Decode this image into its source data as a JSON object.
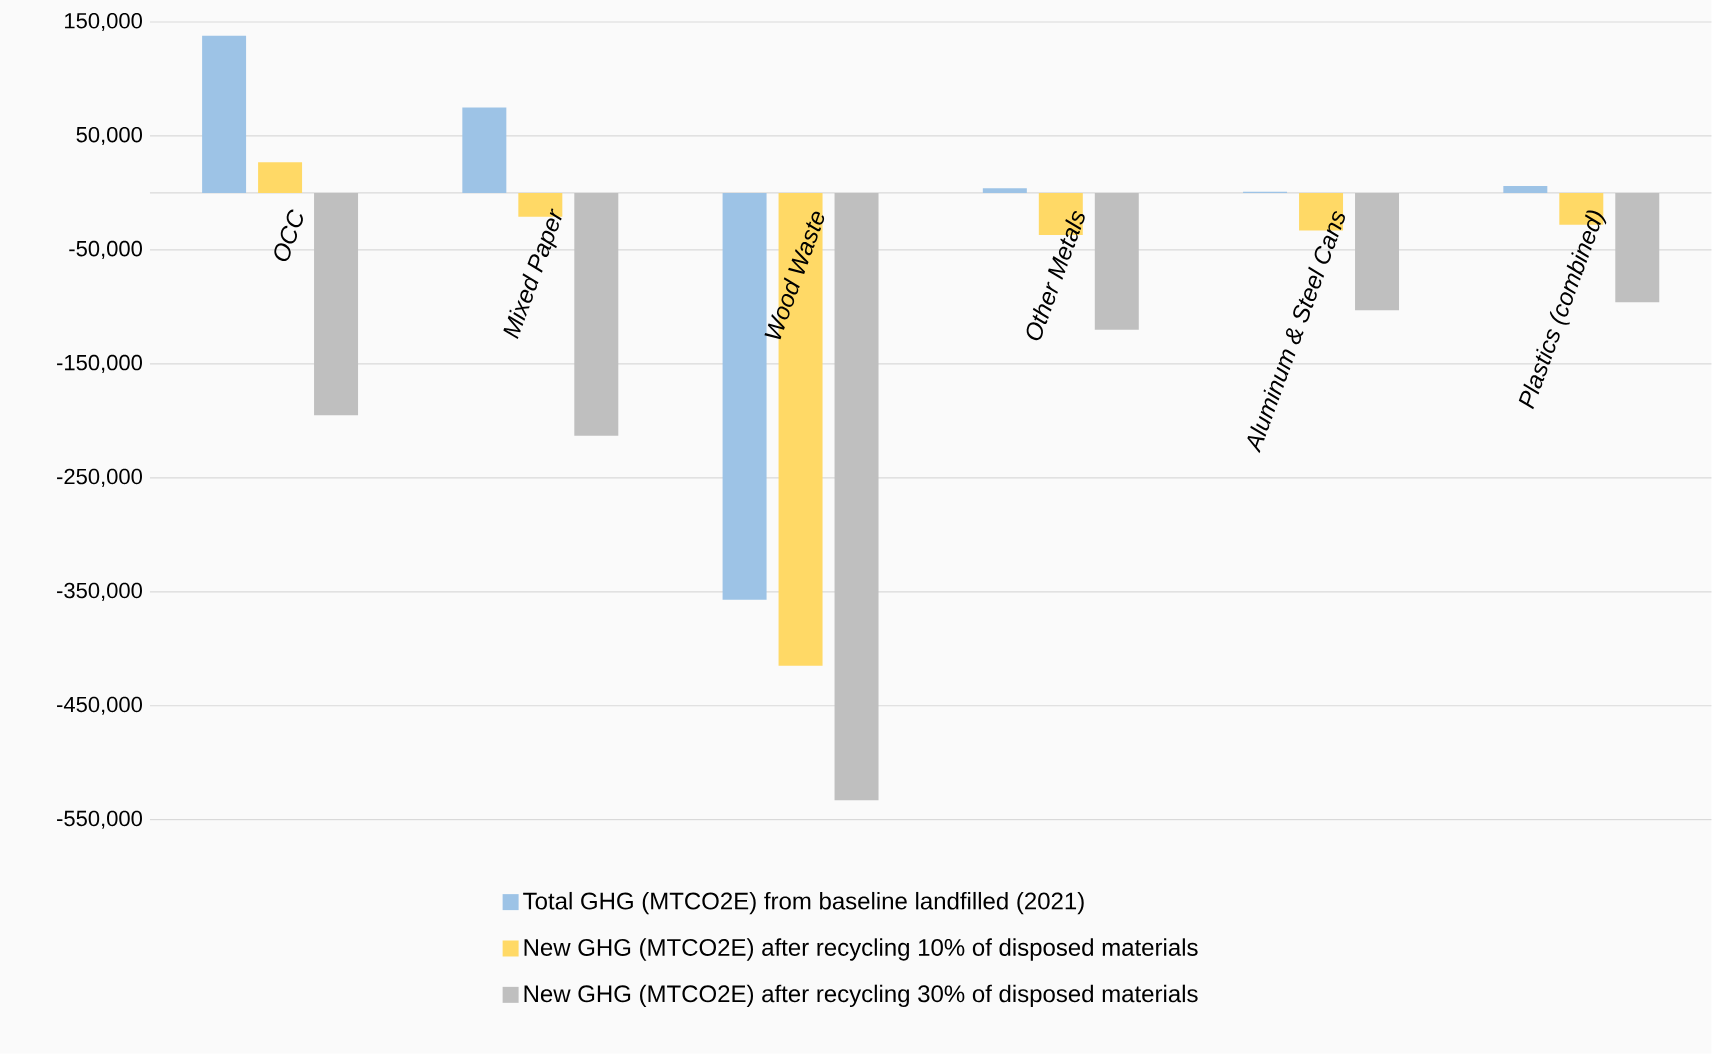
{
  "chart_data": {
    "type": "bar",
    "categories": [
      "OCC",
      "Mixed Paper",
      "Wood Waste",
      "Other Metals",
      "Aluminum & Steel Cans",
      "Plastics (combined)"
    ],
    "series": [
      {
        "name": "Total GHG (MTCO2E) from baseline landfilled (2021)",
        "color": "#9dc3e6",
        "values": [
          138000,
          75000,
          -357000,
          4000,
          1000,
          6000
        ]
      },
      {
        "name": "New GHG (MTCO2E) after recycling 10% of disposed materials",
        "color": "#ffd966",
        "values": [
          27000,
          -21000,
          -415000,
          -37000,
          -33000,
          -28000
        ]
      },
      {
        "name": "New GHG (MTCO2E) after recycling 30% of disposed materials",
        "color": "#bfbfbf",
        "values": [
          -195000,
          -213000,
          -533000,
          -120000,
          -103000,
          -96000
        ]
      }
    ],
    "ylim": [
      -550000,
      150000
    ],
    "yticks": [
      {
        "value": 150000,
        "label": "150,000"
      },
      {
        "value": 50000,
        "label": "50,000"
      },
      {
        "value": 0,
        "label": null
      },
      {
        "value": -50000,
        "label": "-50,000"
      },
      {
        "value": -150000,
        "label": "-150,000"
      },
      {
        "value": -250000,
        "label": "-250,000"
      },
      {
        "value": -350000,
        "label": "-350,000"
      },
      {
        "value": -450000,
        "label": "-450,000"
      },
      {
        "value": -550000,
        "label": "-550,000"
      }
    ],
    "grid": "y",
    "legend": "bottom"
  }
}
